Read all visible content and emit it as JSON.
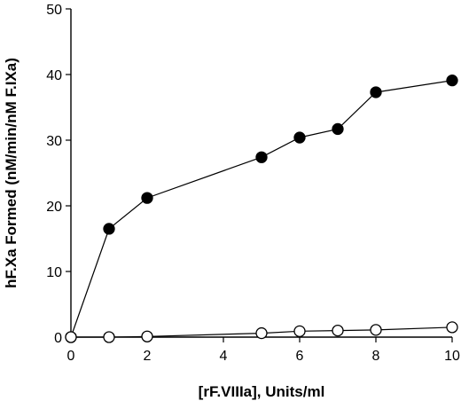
{
  "chart_data": {
    "type": "line",
    "title": "",
    "xlabel": "[rF.VIIIa], Units/ml",
    "ylabel": "hF.Xa Formed (nM/min/nM F.IXa)",
    "xlim": [
      0,
      10
    ],
    "ylim": [
      0,
      50
    ],
    "xticks": [
      0,
      2,
      4,
      6,
      8,
      10
    ],
    "yticks": [
      0,
      10,
      20,
      30,
      40,
      50
    ],
    "grid": false,
    "legend": "none",
    "series": [
      {
        "marker": "filled-circle",
        "color": "#000000",
        "x": [
          0,
          1,
          2,
          5,
          6,
          7,
          8,
          10
        ],
        "y": [
          0,
          16.5,
          21.2,
          27.4,
          30.4,
          31.7,
          37.3,
          39.1
        ]
      },
      {
        "marker": "open-circle",
        "color": "#000000",
        "x": [
          0,
          1,
          2,
          5,
          6,
          7,
          8,
          10
        ],
        "y": [
          0,
          0,
          0.1,
          0.6,
          0.9,
          1.0,
          1.1,
          1.5
        ]
      }
    ]
  }
}
